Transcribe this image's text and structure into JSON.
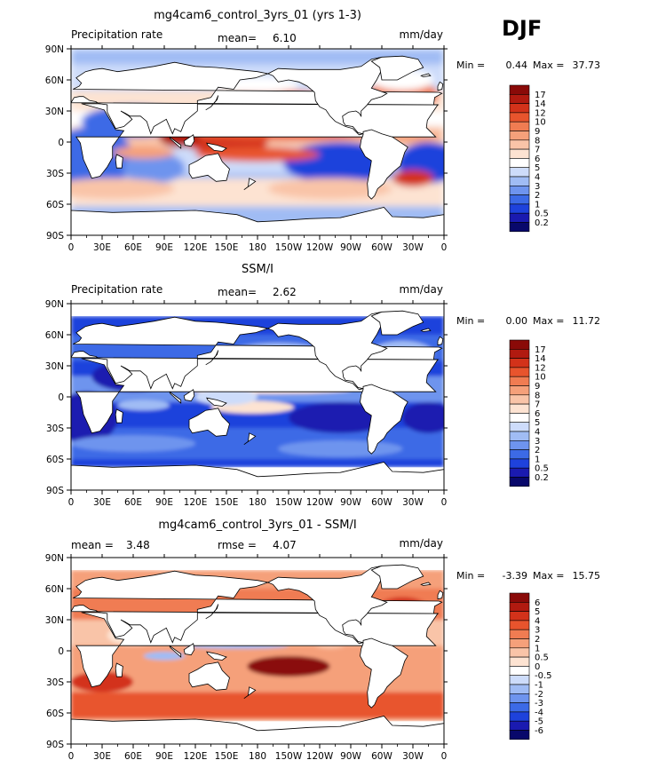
{
  "season": "DJF",
  "panels": [
    {
      "title": "mg4cam6_control_3yrs_01 (yrs 1-3)",
      "left_label": "Precipitation rate",
      "stat1_label": "mean=",
      "stat1_value": "6.10",
      "stat2_label": "",
      "stat2_value": "",
      "units": "mm/day",
      "min_text": "Min =",
      "min_value": "0.44",
      "max_text": "Max =",
      "max_value": "37.73",
      "colorbar_labels": [
        "17",
        "14",
        "12",
        "10",
        "9",
        "8",
        "7",
        "6",
        "5",
        "4",
        "3",
        "2",
        "1",
        "0.5",
        "0.2"
      ]
    },
    {
      "title": "SSM/I",
      "left_label": "Precipitation rate",
      "stat1_label": "mean=",
      "stat1_value": "2.62",
      "stat2_label": "",
      "stat2_value": "",
      "units": "mm/day",
      "min_text": "Min =",
      "min_value": "0.00",
      "max_text": "Max =",
      "max_value": "11.72",
      "colorbar_labels": [
        "17",
        "14",
        "12",
        "10",
        "9",
        "8",
        "7",
        "6",
        "5",
        "4",
        "3",
        "2",
        "1",
        "0.5",
        "0.2"
      ]
    },
    {
      "title": "mg4cam6_control_3yrs_01 - SSM/I",
      "left_label": "",
      "stat1_label": "mean =",
      "stat1_value": "3.48",
      "stat2_label": "rmse =",
      "stat2_value": "4.07",
      "units": "mm/day",
      "min_text": "Min =",
      "min_value": "-3.39",
      "max_text": "Max =",
      "max_value": "15.75",
      "colorbar_labels": [
        "6",
        "5",
        "4",
        "3",
        "2",
        "1",
        "0.5",
        "0",
        "-0.5",
        "-1",
        "-2",
        "-3",
        "-4",
        "-5",
        "-6"
      ]
    }
  ],
  "x_ticks": [
    "0",
    "30E",
    "60E",
    "90E",
    "120E",
    "150E",
    "180",
    "150W",
    "120W",
    "90W",
    "60W",
    "30W",
    "0"
  ],
  "y_ticks": [
    "90N",
    "60N",
    "30N",
    "0",
    "30S",
    "60S",
    "90S"
  ],
  "colors": {
    "abs": [
      "#08086b",
      "#1a1ab0",
      "#1e42dc",
      "#3c6ae6",
      "#6e94ee",
      "#a0bcf4",
      "#cddcfa",
      "#ffffff",
      "#fde3d2",
      "#f9c4a8",
      "#f5a07a",
      "#f07c52",
      "#e8542d",
      "#d3321a",
      "#b11a10",
      "#8a0a08"
    ],
    "diff": [
      "#08086b",
      "#1a1ab0",
      "#1e42dc",
      "#3c6ae6",
      "#6e94ee",
      "#a0bcf4",
      "#cddcfa",
      "#ffffff",
      "#fde3d2",
      "#f9c4a8",
      "#f5a07a",
      "#f07c52",
      "#e8542d",
      "#d3321a",
      "#b11a10",
      "#8a0a08"
    ]
  },
  "chart_data": [
    {
      "type": "heatmap",
      "title": "mg4cam6_control_3yrs_01 (yrs 1-3)",
      "variable": "Precipitation rate",
      "units": "mm/day",
      "mean": 6.1,
      "min": 0.44,
      "max": 37.73,
      "xlim": [
        0,
        360
      ],
      "ylim": [
        -90,
        90
      ],
      "contour_levels": [
        0.2,
        0.5,
        1,
        2,
        3,
        4,
        5,
        6,
        7,
        8,
        9,
        10,
        12,
        14,
        17
      ]
    },
    {
      "type": "heatmap",
      "title": "SSM/I",
      "variable": "Precipitation rate",
      "units": "mm/day",
      "mean": 2.62,
      "min": 0.0,
      "max": 11.72,
      "xlim": [
        0,
        360
      ],
      "ylim": [
        -90,
        90
      ],
      "contour_levels": [
        0.2,
        0.5,
        1,
        2,
        3,
        4,
        5,
        6,
        7,
        8,
        9,
        10,
        12,
        14,
        17
      ]
    },
    {
      "type": "heatmap",
      "title": "mg4cam6_control_3yrs_01 - SSM/I",
      "units": "mm/day",
      "mean": 3.48,
      "rmse": 4.07,
      "min": -3.39,
      "max": 15.75,
      "xlim": [
        0,
        360
      ],
      "ylim": [
        -90,
        90
      ],
      "contour_levels": [
        -6,
        -5,
        -4,
        -3,
        -2,
        -1,
        -0.5,
        0,
        0.5,
        1,
        2,
        3,
        4,
        5,
        6
      ]
    }
  ]
}
